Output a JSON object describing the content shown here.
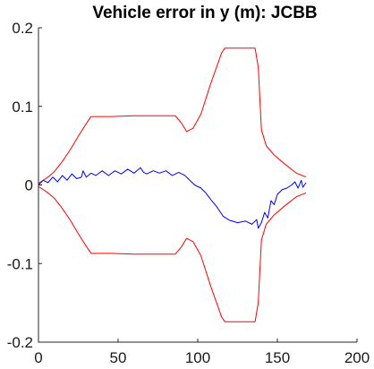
{
  "chart_data": {
    "type": "line",
    "title": "Vehicle error in y (m): JCBB",
    "xlabel": "",
    "ylabel": "",
    "xlim": [
      0,
      200
    ],
    "ylim": [
      -0.2,
      0.2
    ],
    "xticks": [
      0,
      50,
      100,
      150,
      200
    ],
    "yticks": [
      -0.2,
      -0.1,
      0,
      0.1,
      0.2
    ],
    "xtick_labels": [
      "0",
      "50",
      "100",
      "150",
      "200"
    ],
    "ytick_labels": [
      "-0.2",
      "-0.1",
      "0",
      "0.1",
      "0.2"
    ],
    "grid": false,
    "legend": "none",
    "series": [
      {
        "name": "upper-bound",
        "color": "#ff0000",
        "x": [
          0,
          3,
          6,
          10,
          15,
          20,
          25,
          30,
          33,
          45,
          60,
          75,
          86,
          90,
          93,
          97,
          102,
          108,
          115,
          117,
          125,
          136,
          138,
          140,
          143,
          148,
          155,
          162,
          168
        ],
        "y": [
          0.002,
          0.006,
          0.01,
          0.017,
          0.03,
          0.045,
          0.062,
          0.078,
          0.087,
          0.087,
          0.088,
          0.088,
          0.088,
          0.078,
          0.068,
          0.072,
          0.09,
          0.128,
          0.168,
          0.174,
          0.174,
          0.174,
          0.15,
          0.07,
          0.05,
          0.038,
          0.026,
          0.015,
          0.01
        ]
      },
      {
        "name": "lower-bound",
        "color": "#ff0000",
        "x": [
          0,
          3,
          6,
          10,
          15,
          20,
          25,
          30,
          33,
          45,
          60,
          75,
          86,
          90,
          93,
          97,
          102,
          108,
          115,
          117,
          125,
          136,
          138,
          140,
          143,
          148,
          155,
          162,
          168
        ],
        "y": [
          -0.002,
          -0.006,
          -0.01,
          -0.017,
          -0.03,
          -0.045,
          -0.062,
          -0.078,
          -0.087,
          -0.087,
          -0.088,
          -0.088,
          -0.088,
          -0.078,
          -0.068,
          -0.072,
          -0.09,
          -0.128,
          -0.168,
          -0.174,
          -0.174,
          -0.174,
          -0.15,
          -0.07,
          -0.05,
          -0.038,
          -0.026,
          -0.015,
          -0.01
        ]
      },
      {
        "name": "error-y",
        "color": "#0000ff",
        "x": [
          0,
          3,
          6,
          9,
          12,
          15,
          18,
          21,
          24,
          27,
          28,
          30,
          33,
          36,
          40,
          44,
          48,
          52,
          56,
          60,
          64,
          66,
          68,
          72,
          76,
          80,
          84,
          88,
          92,
          95,
          98,
          102,
          105,
          108,
          112,
          116,
          120,
          125,
          130,
          134,
          137,
          138,
          140,
          142,
          144,
          146,
          148,
          150,
          153,
          156,
          159,
          161,
          163,
          165,
          166,
          168
        ],
        "y": [
          0.0,
          0.006,
          0.003,
          0.01,
          0.004,
          0.012,
          0.006,
          0.014,
          0.008,
          0.01,
          0.018,
          0.01,
          0.015,
          0.012,
          0.018,
          0.012,
          0.018,
          0.014,
          0.02,
          0.015,
          0.022,
          0.016,
          0.014,
          0.018,
          0.015,
          0.018,
          0.012,
          0.016,
          0.012,
          0.006,
          0.0,
          -0.004,
          -0.01,
          -0.018,
          -0.028,
          -0.04,
          -0.045,
          -0.048,
          -0.046,
          -0.05,
          -0.044,
          -0.055,
          -0.048,
          -0.035,
          -0.042,
          -0.02,
          -0.025,
          -0.012,
          -0.006,
          -0.004,
          0.0,
          0.004,
          -0.004,
          0.006,
          -0.003,
          0.003
        ]
      }
    ]
  }
}
